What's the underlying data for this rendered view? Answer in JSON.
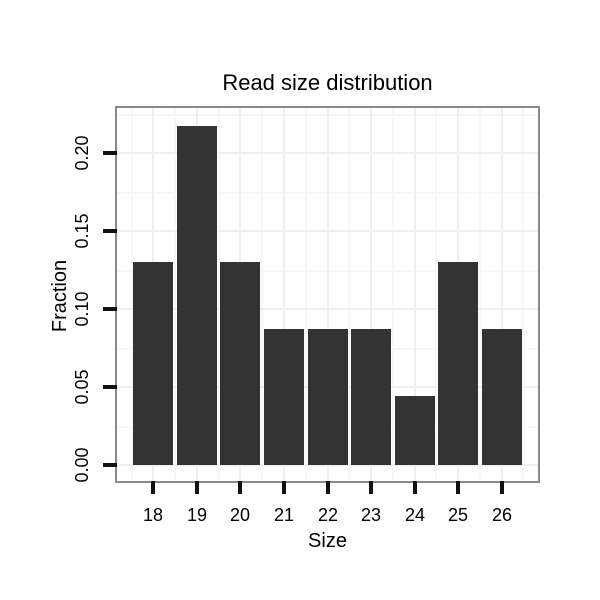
{
  "chart_data": {
    "type": "bar",
    "title": "Read size distribution",
    "xlabel": "Size",
    "ylabel": "Fraction",
    "categories": [
      "18",
      "19",
      "20",
      "21",
      "22",
      "23",
      "24",
      "25",
      "26"
    ],
    "values": [
      0.13,
      0.217,
      0.13,
      0.087,
      0.087,
      0.087,
      0.044,
      0.13,
      0.087
    ],
    "y_ticks": [
      {
        "label": "0.00",
        "value": 0.0
      },
      {
        "label": "0.05",
        "value": 0.05
      },
      {
        "label": "0.10",
        "value": 0.1
      },
      {
        "label": "0.15",
        "value": 0.15
      },
      {
        "label": "0.20",
        "value": 0.2
      }
    ],
    "ylim": [
      0,
      0.228
    ],
    "grid": "major+minor",
    "legend": "none",
    "colors": {
      "bar_fill": "#333333",
      "panel_border": "#8a8a8a",
      "tick_mark": "#111111",
      "grid_major": "#efefef",
      "grid_minor": "#f7f7f7",
      "text": "#000000",
      "background": "#ffffff"
    }
  }
}
